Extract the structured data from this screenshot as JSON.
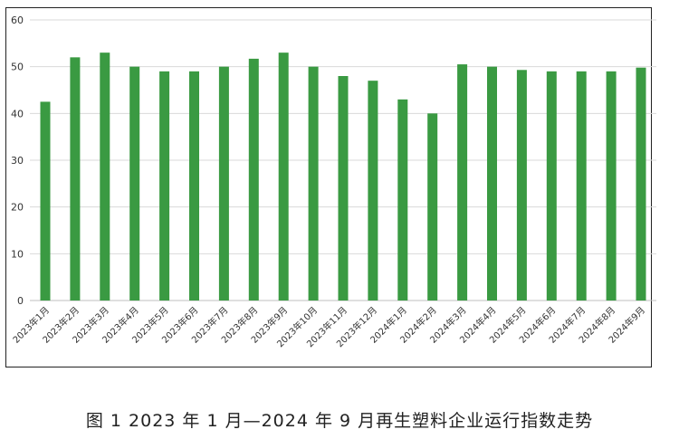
{
  "chart_data": {
    "type": "bar",
    "categories": [
      "2023年1月",
      "2023年2月",
      "2023年3月",
      "2023年4月",
      "2023年5月",
      "2023年6月",
      "2023年7月",
      "2023年8月",
      "2023年9月",
      "2023年10月",
      "2023年11月",
      "2023年12月",
      "2024年1月",
      "2024年2月",
      "2024年3月",
      "2024年4月",
      "2024年5月",
      "2024年6月",
      "2024年7月",
      "2024年8月",
      "2024年9月"
    ],
    "values": [
      42.5,
      52,
      53,
      50,
      49,
      49,
      50,
      51.7,
      53,
      50,
      48,
      47,
      43,
      40,
      50.5,
      50,
      49.3,
      49,
      49,
      49,
      49.8
    ],
    "ylim": [
      0,
      60
    ],
    "yticks": [
      0,
      10,
      20,
      30,
      40,
      50,
      60
    ],
    "title": "",
    "xlabel": "",
    "ylabel": "",
    "grid": true,
    "bar_color": "#3a9a42",
    "grid_color": "#d9d9d9"
  },
  "caption": "图 1  2023 年 1 月—2024 年 9 月再生塑料企业运行指数走势"
}
